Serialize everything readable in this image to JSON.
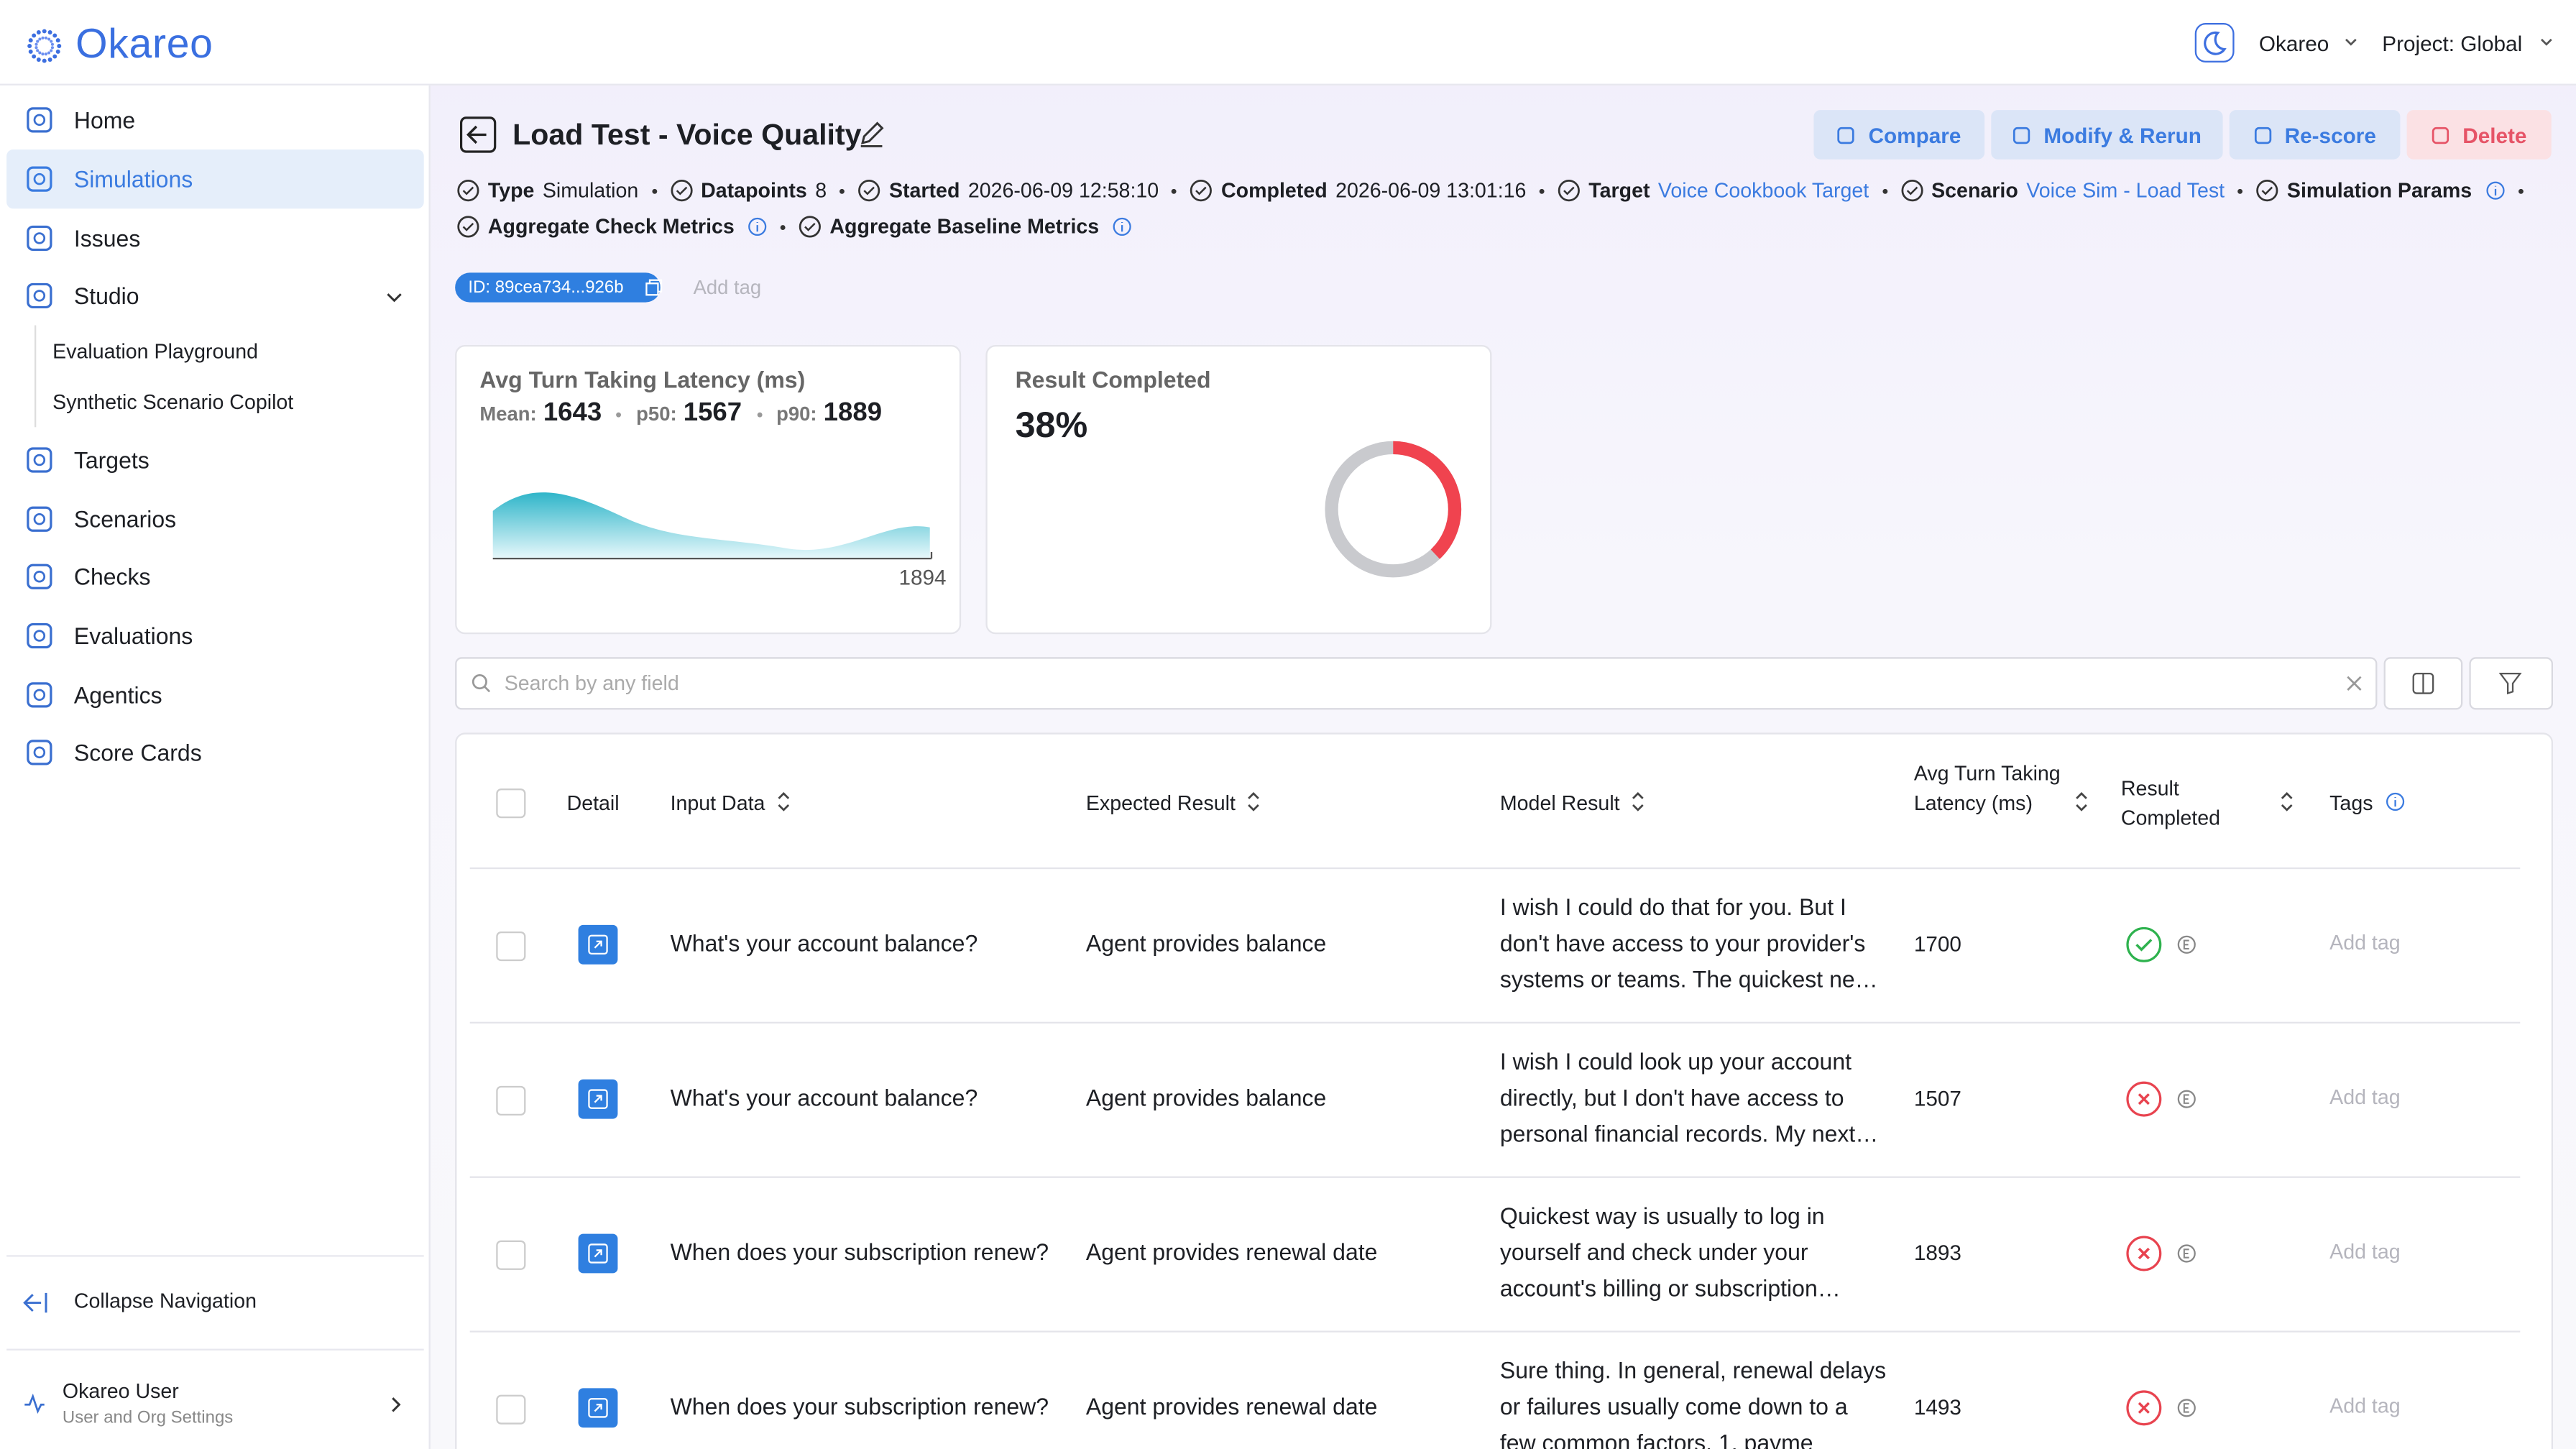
{
  "brand": "Okareo",
  "topbar": {
    "user": "Okareo",
    "project": "Project: Global"
  },
  "nav": {
    "items": [
      "Home",
      "Simulations",
      "Issues",
      "Studio",
      "Targets",
      "Scenarios",
      "Checks",
      "Evaluations",
      "Agentics",
      "Score Cards"
    ],
    "studio_children": [
      "Evaluation Playground",
      "Synthetic Scenario Copilot"
    ],
    "collapse": "Collapse Navigation",
    "user": {
      "name": "Okareo User",
      "sub": "User and Org Settings"
    }
  },
  "header": {
    "title": "Load Test - Voice Quality",
    "actions": [
      "Compare",
      "Modify & Rerun",
      "Re-score",
      "Delete"
    ]
  },
  "meta": [
    [
      {
        "key": "Type",
        "value": "Simulation"
      },
      {
        "key": "Datapoints",
        "value": "8"
      },
      {
        "key": "Started",
        "value": "2026-06-09 12:58:10"
      },
      {
        "key": "Completed",
        "value": "2026-06-09 13:01:16"
      },
      {
        "key": "Target",
        "value": "Voice Cookbook Target",
        "link": true
      },
      {
        "key": "Scenario",
        "value": "Voice Sim - Load Test",
        "link": true
      },
      {
        "key": "Simulation Params",
        "info": true
      }
    ],
    [
      {
        "key": "Aggregate Check Metrics",
        "info": true
      },
      {
        "key": "Aggregate Baseline Metrics",
        "info": true
      }
    ]
  ],
  "id_tag": "ID: 89cea734...926b",
  "add_tag": "Add tag",
  "cards": {
    "latency": {
      "title": "Avg Turn Taking Latency (ms)",
      "stats": [
        {
          "key": "Mean:",
          "value": "1643"
        },
        {
          "key": "p50:",
          "value": "1567"
        },
        {
          "key": "p90:",
          "value": "1889"
        }
      ],
      "axis_label": "1894"
    },
    "result": {
      "title": "Result Completed",
      "value": 38,
      "label": "38%"
    }
  },
  "search_placeholder": "Search by any field",
  "table": {
    "columns": [
      "Detail",
      "Input Data",
      "Expected Result",
      "Model Result",
      "Avg Turn Taking Latency (ms)",
      "Result Completed",
      "Tags"
    ],
    "rows": [
      {
        "input": "What's your account balance?",
        "expected": "Agent provides balance",
        "model": "I wish I could do that for you. But I don't have access to your provider's systems or teams. The quickest ne…",
        "latency": "1700",
        "passed": true,
        "tag": "Add tag"
      },
      {
        "input": "What's your account balance?",
        "expected": "Agent provides balance",
        "model": "I wish I could look up your account directly, but I don't have access to personal financial records. My next…",
        "latency": "1507",
        "passed": false,
        "tag": "Add tag"
      },
      {
        "input": "When does your subscription renew?",
        "expected": "Agent provides renewal date",
        "model": "Quickest way is usually to log in yourself and check under your account's billing or subscription…",
        "latency": "1893",
        "passed": false,
        "tag": "Add tag"
      },
      {
        "input": "When does your subscription renew?",
        "expected": "Agent provides renewal date",
        "model": "Sure thing. In general, renewal delays or failures usually come down to a few common factors. 1. payme",
        "latency": "1493",
        "passed": false,
        "tag": "Add tag"
      }
    ]
  }
}
